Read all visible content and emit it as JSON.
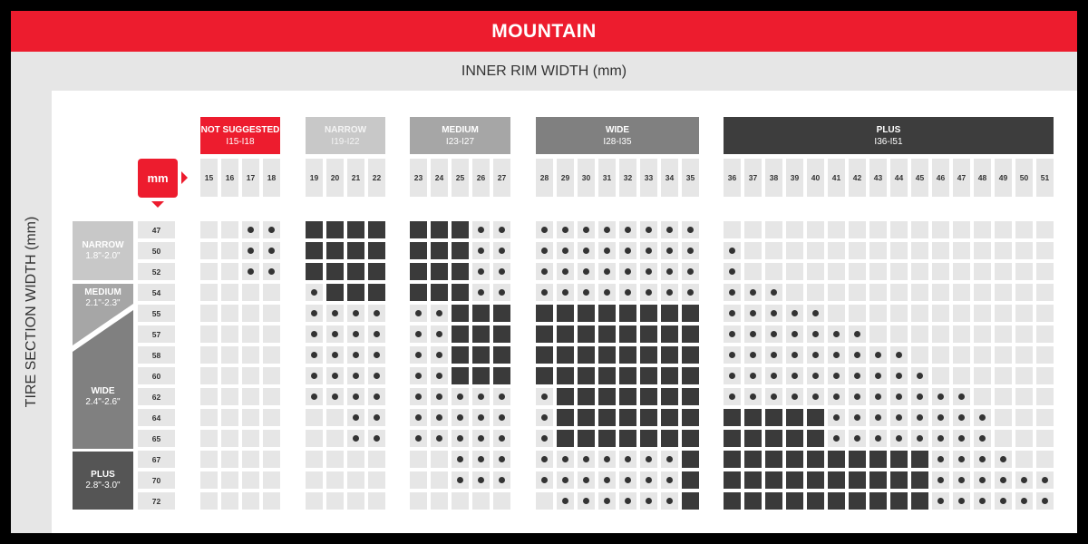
{
  "title": "MOUNTAIN",
  "chart_data": {
    "type": "table",
    "title": "MOUNTAIN",
    "xlabel": "INNER RIM WIDTH (mm)",
    "ylabel": "TIRE SECTION WIDTH (mm)",
    "unit_badge": "mm",
    "cell_key": {
      ".": "empty",
      "o": "dot",
      "#": "filled"
    },
    "colors": {
      "accent": "#ed1c2e",
      "cell": "#e6e6e6",
      "filled": "#3a3a3a",
      "dot": "#333333"
    },
    "rim_groups": [
      {
        "label": "NOT SUGGESTED",
        "range": "I15-I18",
        "color": "#ed1c2e",
        "columns": [
          "15",
          "16",
          "17",
          "18"
        ]
      },
      {
        "label": "NARROW",
        "range": "I19-I22",
        "color": "#c8c8c8",
        "columns": [
          "19",
          "20",
          "21",
          "22"
        ]
      },
      {
        "label": "MEDIUM",
        "range": "I23-I27",
        "color": "#a6a6a6",
        "columns": [
          "23",
          "24",
          "25",
          "26",
          "27"
        ]
      },
      {
        "label": "WIDE",
        "range": "I28-I35",
        "color": "#808080",
        "columns": [
          "28",
          "29",
          "30",
          "31",
          "32",
          "33",
          "34",
          "35"
        ]
      },
      {
        "label": "PLUS",
        "range": "I36-I51",
        "color": "#3d3d3d",
        "columns": [
          "36",
          "37",
          "38",
          "39",
          "40",
          "41",
          "42",
          "43",
          "44",
          "45",
          "46",
          "47",
          "48",
          "49",
          "50",
          "51"
        ]
      }
    ],
    "tire_categories": [
      {
        "label": "NARROW",
        "range": "1.8\"-2.0\"",
        "color": "#c8c8c8"
      },
      {
        "label": "MEDIUM",
        "range": "2.1\"-2.3\"",
        "color": "#a6a6a6"
      },
      {
        "label": "WIDE",
        "range": "2.4\"-2.6\"",
        "color": "#808080"
      },
      {
        "label": "PLUS",
        "range": "2.8\"-3.0\"",
        "color": "#555555"
      }
    ],
    "rows": [
      {
        "width": "47",
        "cells": [
          "..oo",
          "####",
          "###oo",
          "oooooooo",
          "................"
        ]
      },
      {
        "width": "50",
        "cells": [
          "..oo",
          "####",
          "###oo",
          "oooooooo",
          "o..............."
        ]
      },
      {
        "width": "52",
        "cells": [
          "..oo",
          "####",
          "###oo",
          "oooooooo",
          "o..............."
        ]
      },
      {
        "width": "54",
        "cells": [
          "....",
          "o###",
          "###oo",
          "oooooooo",
          "ooo............."
        ]
      },
      {
        "width": "55",
        "cells": [
          "....",
          "oooo",
          "oo###",
          "########",
          "ooooo..........."
        ]
      },
      {
        "width": "57",
        "cells": [
          "....",
          "oooo",
          "oo###",
          "########",
          "ooooooo........."
        ]
      },
      {
        "width": "58",
        "cells": [
          "....",
          "oooo",
          "oo###",
          "########",
          "ooooooooo......."
        ]
      },
      {
        "width": "60",
        "cells": [
          "....",
          "oooo",
          "oo###",
          "########",
          "oooooooooo......"
        ]
      },
      {
        "width": "62",
        "cells": [
          "....",
          "oooo",
          "ooooo",
          "o#######",
          "oooooooooooo...."
        ]
      },
      {
        "width": "64",
        "cells": [
          "....",
          "..oo",
          "ooooo",
          "o#######",
          "#####oooooooo..."
        ]
      },
      {
        "width": "65",
        "cells": [
          "....",
          "..oo",
          "ooooo",
          "o#######",
          "#####oooooooo..."
        ]
      },
      {
        "width": "67",
        "cells": [
          "....",
          "....",
          "..ooo",
          "ooooooo#",
          "##########oooo.."
        ]
      },
      {
        "width": "70",
        "cells": [
          "....",
          "....",
          "..ooo",
          "ooooooo#",
          "##########oooooo"
        ]
      },
      {
        "width": "72",
        "cells": [
          "....",
          "....",
          ".....",
          ".oooooo#",
          "##########oooooo"
        ]
      }
    ]
  }
}
